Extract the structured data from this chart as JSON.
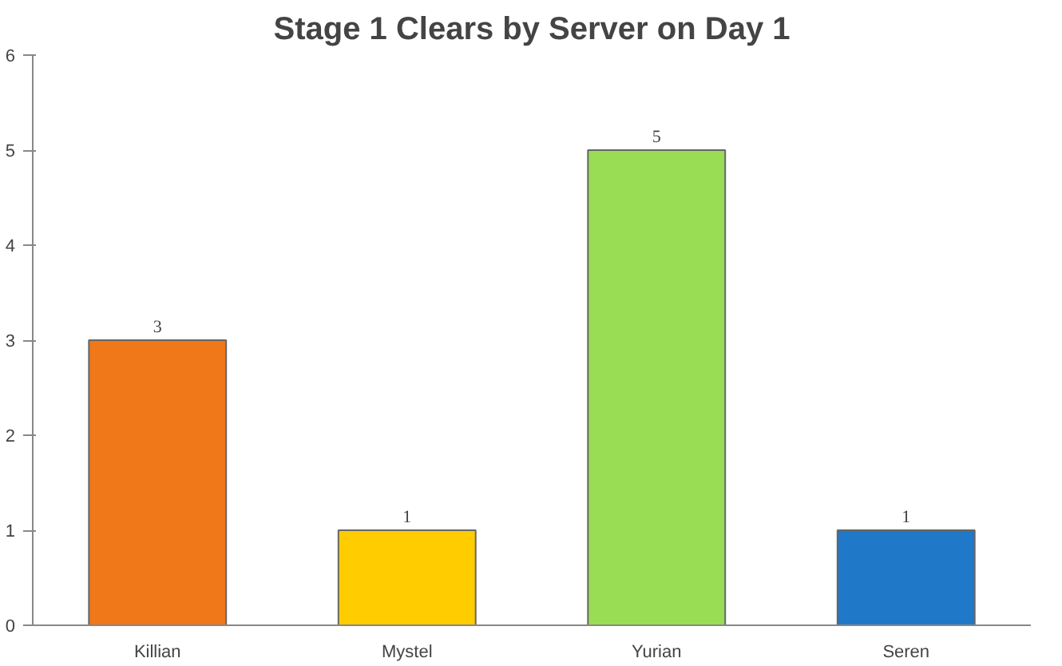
{
  "chart_data": {
    "type": "bar",
    "title": "Stage 1 Clears by Server on Day 1",
    "categories": [
      "Killian",
      "Mystel",
      "Yurian",
      "Seren"
    ],
    "values": [
      3,
      1,
      5,
      1
    ],
    "colors": [
      "#f07818",
      "#ffcc00",
      "#99dd55",
      "#1f78c8"
    ],
    "ylim": [
      0,
      6
    ],
    "yticks": [
      0,
      1,
      2,
      3,
      4,
      5,
      6
    ],
    "grid": false,
    "data_labels": true
  }
}
